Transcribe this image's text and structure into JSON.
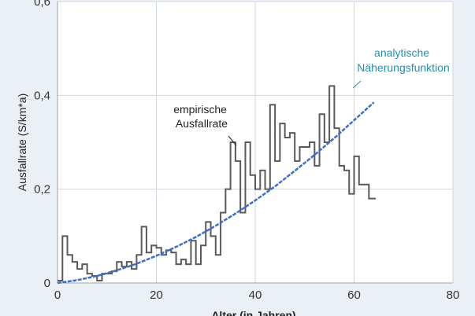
{
  "chart_data": {
    "type": "line",
    "xlabel": "Alter (in Jahren)",
    "ylabel": "Ausfallrate (S/km*a)",
    "xlim": [
      0,
      80
    ],
    "ylim": [
      0,
      0.6
    ],
    "x_ticks": [
      0,
      20,
      40,
      60,
      80
    ],
    "x_tick_labels": [
      "0",
      "20",
      "40",
      "60",
      "80"
    ],
    "y_ticks": [
      0,
      0.2,
      0.4,
      0.6
    ],
    "y_tick_labels": [
      "0",
      "0,2",
      "0,4",
      "0,6"
    ],
    "grid": true,
    "series": [
      {
        "name": "empirische Ausfallrate",
        "style": "step",
        "color": "#5a5a5a",
        "x": [
          0,
          1,
          2,
          3,
          4,
          5,
          6,
          7,
          8,
          9,
          10,
          11,
          12,
          13,
          14,
          15,
          16,
          17,
          18,
          19,
          20,
          21,
          22,
          23,
          24,
          25,
          26,
          27,
          28,
          29,
          30,
          31,
          32,
          33,
          34,
          35,
          36,
          37,
          38,
          39,
          40,
          41,
          42,
          43,
          44,
          45,
          46,
          47,
          48,
          49,
          50,
          51,
          52,
          53,
          54,
          55,
          56,
          57,
          58,
          59,
          60,
          61,
          62,
          63,
          64
        ],
        "values": [
          0.005,
          0.1,
          0.06,
          0.045,
          0.03,
          0.04,
          0.02,
          0.015,
          0.005,
          0.02,
          0.02,
          0.025,
          0.045,
          0.035,
          0.045,
          0.03,
          0.06,
          0.12,
          0.065,
          0.08,
          0.075,
          0.06,
          0.07,
          0.065,
          0.04,
          0.05,
          0.04,
          0.09,
          0.04,
          0.08,
          0.13,
          0.1,
          0.06,
          0.15,
          0.2,
          0.3,
          0.26,
          0.15,
          0.3,
          0.23,
          0.2,
          0.24,
          0.2,
          0.38,
          0.26,
          0.34,
          0.31,
          0.32,
          0.26,
          0.29,
          0.29,
          0.3,
          0.25,
          0.36,
          0.3,
          0.42,
          0.33,
          0.25,
          0.24,
          0.19,
          0.27,
          0.21,
          0.21,
          0.18,
          0.18
        ]
      },
      {
        "name": "analytische Näherungsfunktion",
        "style": "curve",
        "color": "#3f6fc7",
        "x": [
          0,
          4,
          8,
          12,
          16,
          20,
          24,
          28,
          32,
          36,
          40,
          44,
          48,
          52,
          56,
          60,
          64
        ],
        "values": [
          0.0,
          0.006,
          0.015,
          0.027,
          0.041,
          0.058,
          0.077,
          0.098,
          0.122,
          0.148,
          0.176,
          0.206,
          0.239,
          0.273,
          0.309,
          0.347,
          0.385
        ]
      }
    ],
    "annotations": [
      {
        "id": "emp",
        "lines": [
          "empirische",
          "Ausfallrate"
        ],
        "color": "#222222"
      },
      {
        "id": "ana",
        "lines": [
          "analytische",
          "Näherungsfunktion"
        ],
        "color": "#1f8fb0"
      }
    ]
  }
}
